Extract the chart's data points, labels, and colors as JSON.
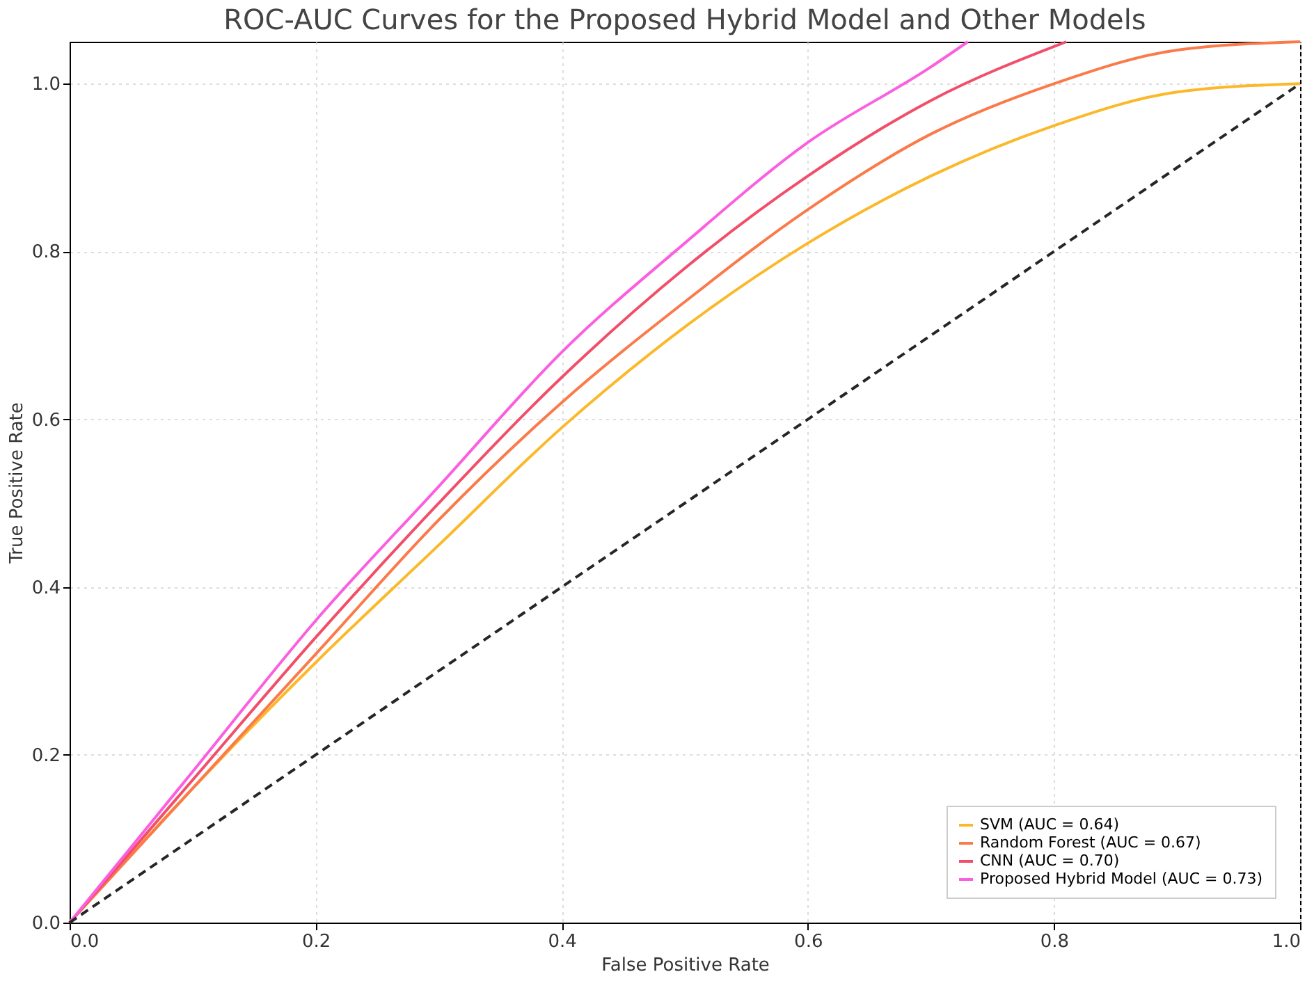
{
  "chart_data": {
    "type": "line",
    "title": "ROC-AUC Curves for the Proposed Hybrid Model and Other Models",
    "xlabel": "False Positive Rate",
    "ylabel": "True Positive Rate",
    "xlim": [
      0,
      1
    ],
    "ylim": [
      0,
      1.05
    ],
    "xticks": [
      {
        "value": 0,
        "label": "0.0"
      },
      {
        "value": 0.2,
        "label": "0.2"
      },
      {
        "value": 0.4,
        "label": "0.4"
      },
      {
        "value": 0.6,
        "label": "0.6"
      },
      {
        "value": 0.8,
        "label": "0.8"
      },
      {
        "value": 1,
        "label": "1.0"
      }
    ],
    "yticks": [
      {
        "value": 0,
        "label": "0.0"
      },
      {
        "value": 0.2,
        "label": "0.2"
      },
      {
        "value": 0.4,
        "label": "0.4"
      },
      {
        "value": 0.6,
        "label": "0.6"
      },
      {
        "value": 0.8,
        "label": "0.8"
      },
      {
        "value": 1,
        "label": "1.0"
      }
    ],
    "grid": true,
    "legend": "bottom right",
    "marker": "none",
    "series": [
      {
        "name": "SVM (AUC = 0.64)",
        "color": "#fbb829",
        "line_style": "solid",
        "x": [
          0,
          0.1,
          0.2,
          0.3,
          0.4,
          0.5,
          0.6,
          0.7,
          0.8,
          0.9,
          1.0
        ],
        "values": [
          0,
          0.16,
          0.31,
          0.45,
          0.59,
          0.71,
          0.81,
          0.89,
          0.95,
          0.99,
          1.0
        ]
      },
      {
        "name": "Random Forest (AUC = 0.67)",
        "color": "#fb7a4a",
        "line_style": "solid",
        "x": [
          0,
          0.1,
          0.2,
          0.3,
          0.4,
          0.5,
          0.6,
          0.7,
          0.8,
          0.9,
          1.0
        ],
        "values": [
          0,
          0.16,
          0.32,
          0.48,
          0.62,
          0.74,
          0.85,
          0.94,
          1.0,
          1.04,
          1.05
        ]
      },
      {
        "name": "CNN (AUC = 0.70)",
        "color": "#f24e6a",
        "line_style": "solid",
        "x": [
          0,
          0.1,
          0.2,
          0.3,
          0.4,
          0.5,
          0.6,
          0.7,
          0.81
        ],
        "values": [
          0,
          0.17,
          0.34,
          0.5,
          0.65,
          0.78,
          0.89,
          0.98,
          1.05
        ]
      },
      {
        "name": "Proposed Hybrid Model (AUC = 0.73)",
        "color": "#fb5fe0",
        "line_style": "solid",
        "x": [
          0,
          0.1,
          0.2,
          0.3,
          0.4,
          0.5,
          0.6,
          0.7,
          0.73
        ],
        "values": [
          0,
          0.18,
          0.36,
          0.52,
          0.68,
          0.81,
          0.93,
          1.02,
          1.05
        ]
      },
      {
        "color": "#262626",
        "line_style": "dashed",
        "x": [
          0,
          1
        ],
        "values": [
          0,
          1
        ]
      }
    ]
  }
}
